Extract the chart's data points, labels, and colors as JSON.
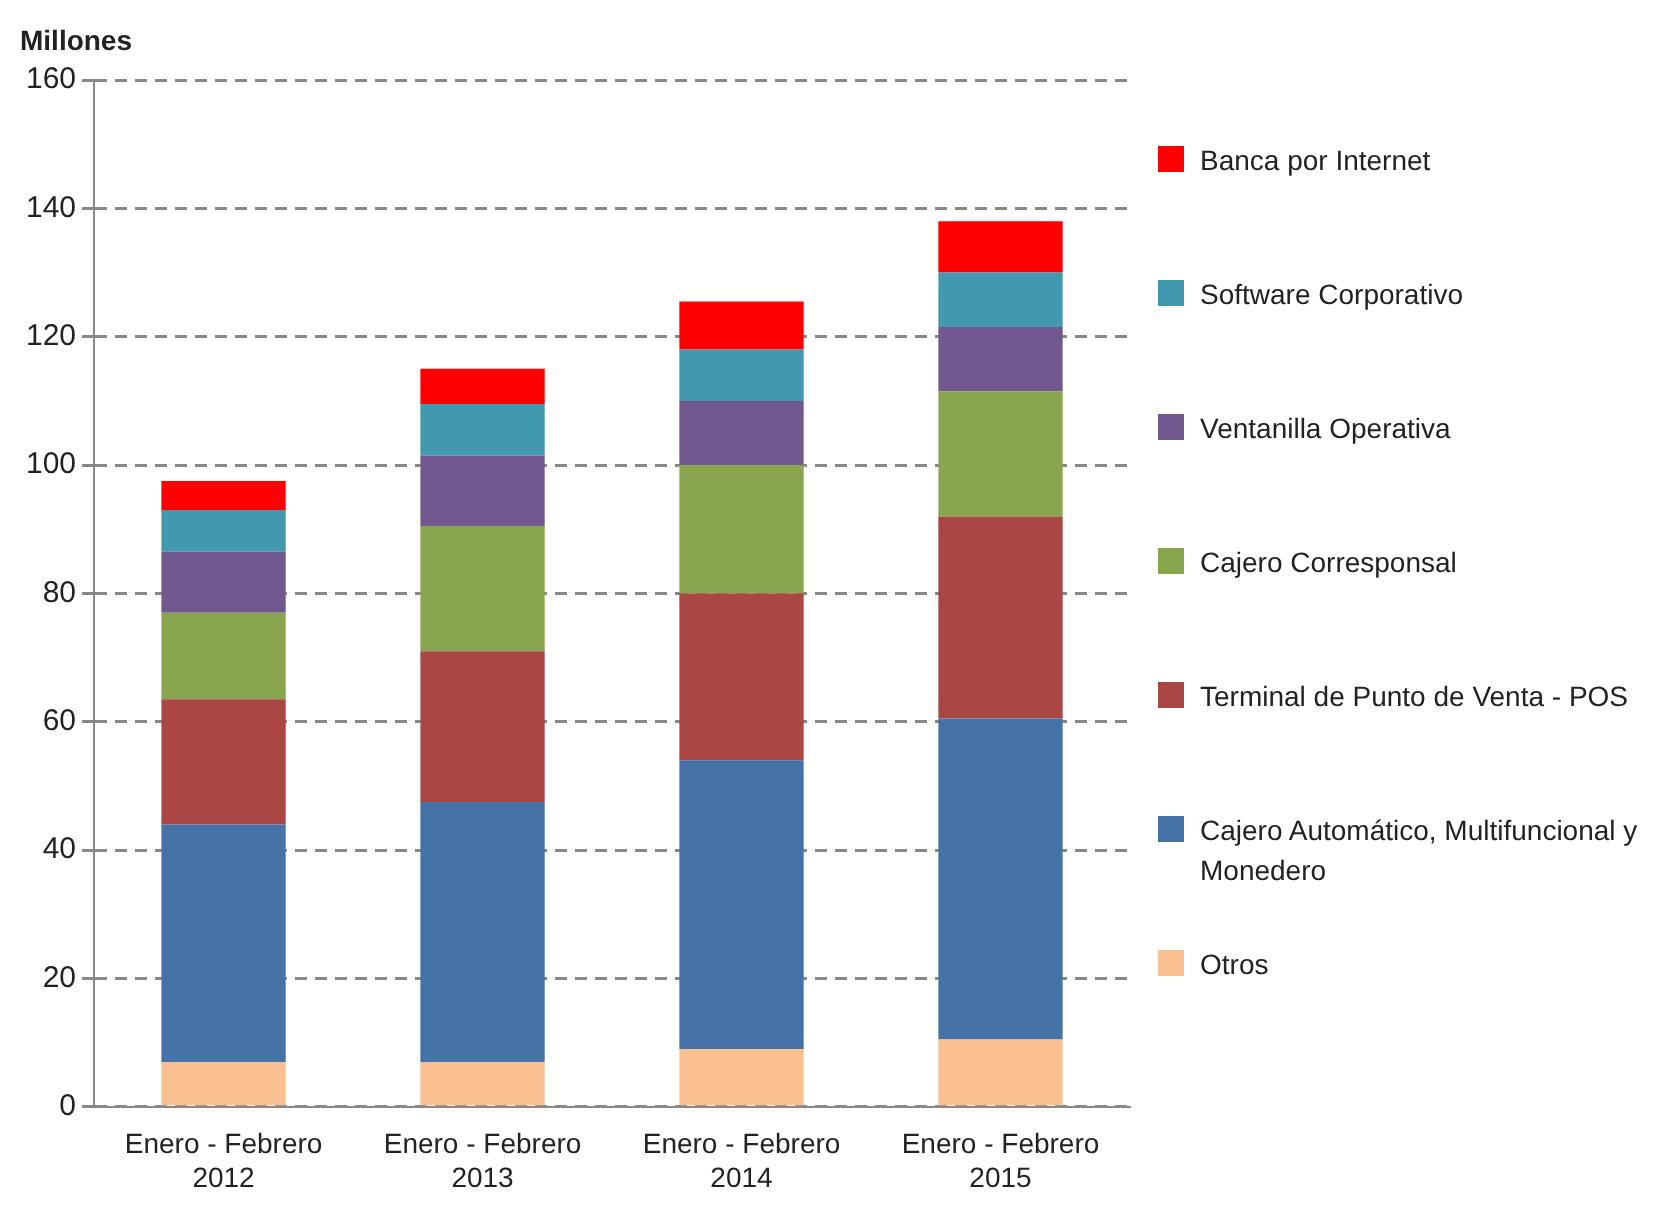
{
  "chart_data": {
    "type": "bar",
    "stacked": true,
    "ylabel": "Millones",
    "categories": [
      "Enero - Febrero\n2012",
      "Enero - Febrero\n2013",
      "Enero - Febrero\n2014",
      "Enero - Febrero\n2015"
    ],
    "series": [
      {
        "name": "Otros",
        "color": "#fac090",
        "values": [
          7,
          7,
          9,
          10.5
        ]
      },
      {
        "name": "Cajero Automático, Multifuncional y Monedero",
        "color": "#4572a7",
        "values": [
          37,
          40.5,
          45,
          50
        ]
      },
      {
        "name": "Terminal de Punto de Venta - POS",
        "color": "#aa4643",
        "values": [
          19.5,
          23.5,
          26,
          31.5
        ]
      },
      {
        "name": "Cajero Corresponsal",
        "color": "#89a54e",
        "values": [
          13.5,
          19.5,
          20,
          19.5
        ]
      },
      {
        "name": "Ventanilla Operativa",
        "color": "#71588f",
        "values": [
          9.5,
          11,
          10,
          10
        ]
      },
      {
        "name": "Software Corporativo",
        "color": "#4198af",
        "values": [
          6.5,
          8,
          8,
          8.5
        ]
      },
      {
        "name": "Banca por Internet",
        "color": "#ff0000",
        "values": [
          4.5,
          5.5,
          7.5,
          8
        ]
      }
    ],
    "ylim": [
      0,
      160
    ],
    "yticks": [
      0,
      20,
      40,
      60,
      80,
      100,
      120,
      140,
      160
    ],
    "grid": "y",
    "legend": "right"
  }
}
